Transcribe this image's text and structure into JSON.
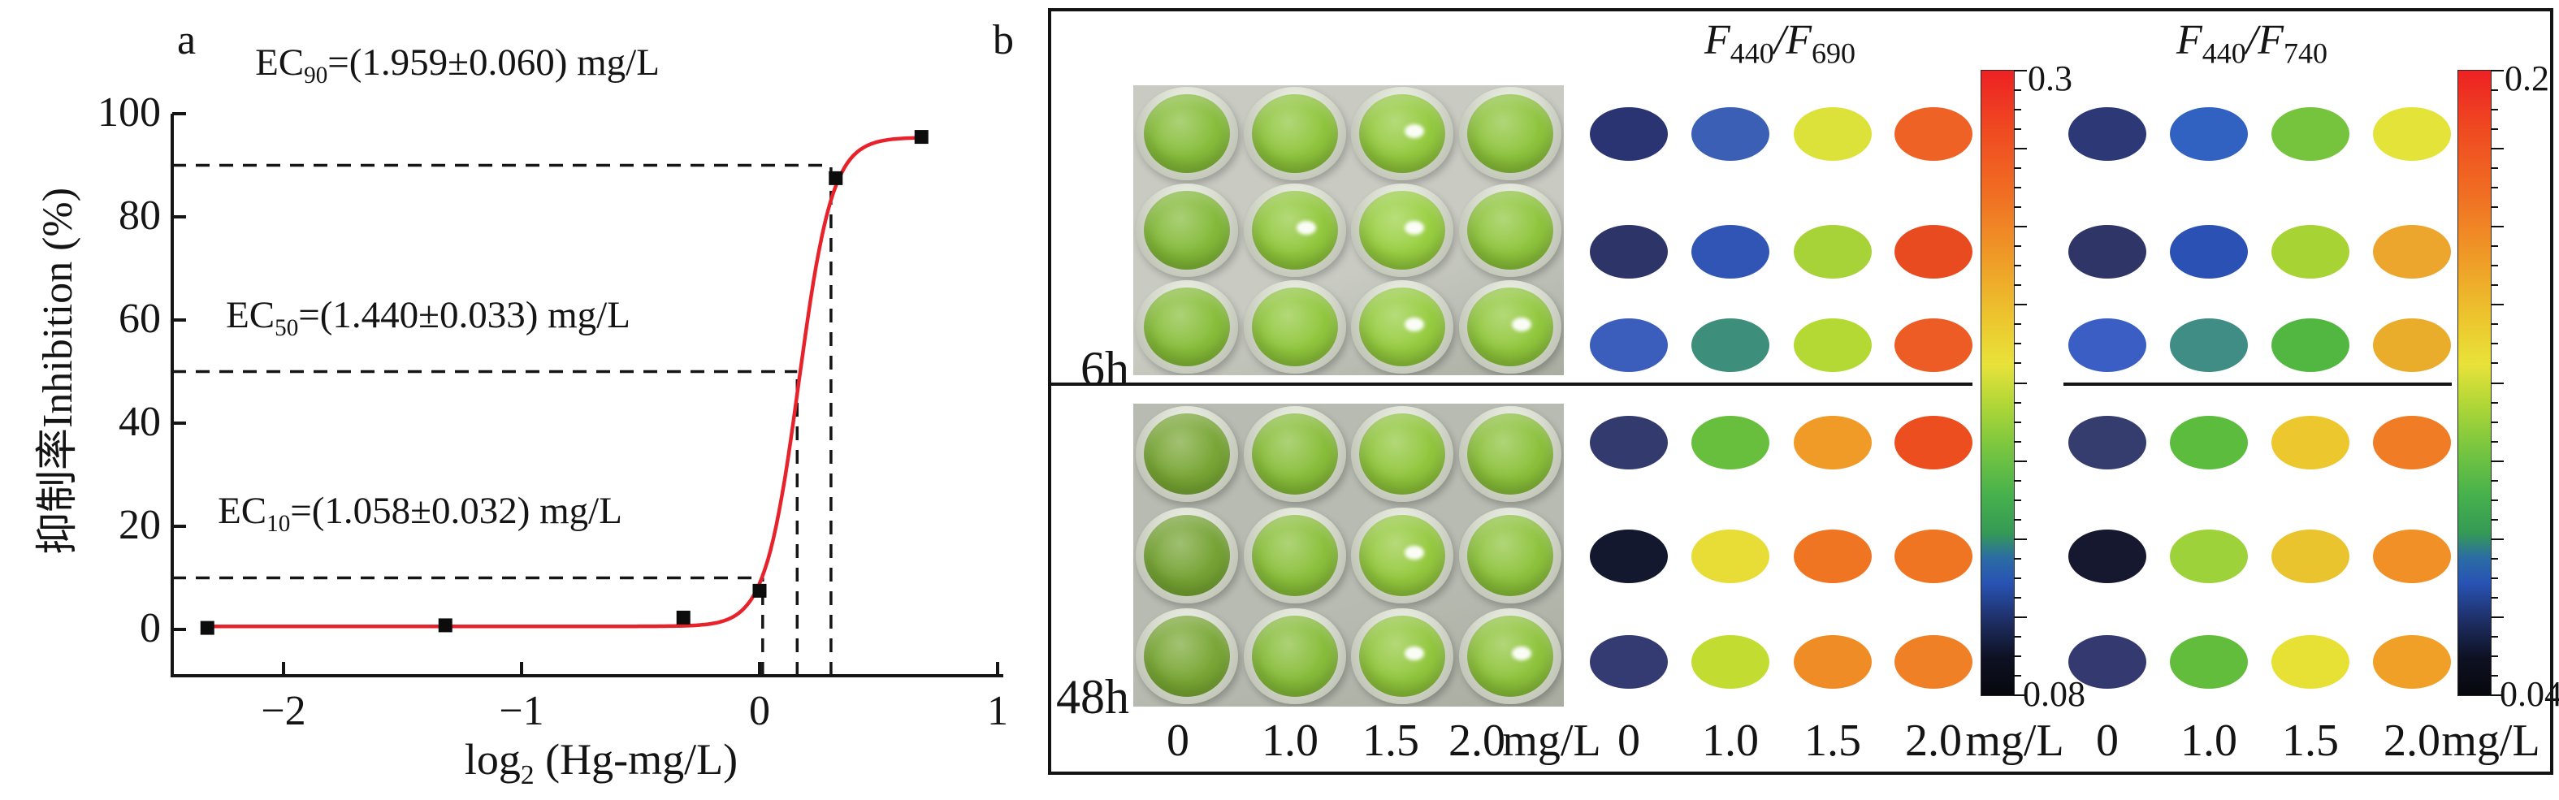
{
  "panel_a": {
    "label": "a",
    "y_axis": {
      "title": "抑制率Inhibition (%)",
      "tick_labels": [
        "0",
        "20",
        "40",
        "60",
        "80",
        "100"
      ]
    },
    "x_axis": {
      "title_prefix": "log",
      "title_sub": "2",
      "title_rest": " (Hg-mg/L)",
      "tick_labels": [
        "−2",
        "−1",
        "0",
        "1"
      ]
    },
    "annotations": [
      {
        "prefix": "EC",
        "sub": "90",
        "rest": "=(1.959±0.060) mg/L"
      },
      {
        "prefix": "EC",
        "sub": "50",
        "rest": "=(1.440±0.033) mg/L"
      },
      {
        "prefix": "EC",
        "sub": "10",
        "rest": "=(1.058±0.032) mg/L"
      }
    ]
  },
  "panel_b": {
    "label": "b",
    "plates": [
      {
        "time_label": "6h",
        "bg": "#c9cbc3",
        "well_colors": [
          [
            "#88be3c",
            "#90c63e",
            "#95cb40",
            "#8fc53e"
          ],
          [
            "#85bb3b",
            "#93c93f",
            "#9ad043",
            "#90c63e"
          ],
          [
            "#89bf3c",
            "#92c83f",
            "#97cd41",
            "#93c93f"
          ]
        ],
        "highlights": [
          [
            0,
            2
          ],
          [
            1,
            1
          ],
          [
            1,
            2
          ],
          [
            2,
            2
          ],
          [
            2,
            3
          ]
        ]
      },
      {
        "time_label": "48h",
        "bg": "#b7bbb1",
        "well_colors": [
          [
            "#7aa737",
            "#8abf3c",
            "#92c73e",
            "#8dc23d"
          ],
          [
            "#77a436",
            "#8cc13d",
            "#96ca40",
            "#8fc43e"
          ],
          [
            "#7ba837",
            "#89be3c",
            "#93c83f",
            "#90c53e"
          ]
        ],
        "highlights": [
          [
            1,
            2
          ],
          [
            2,
            2
          ],
          [
            2,
            3
          ]
        ]
      }
    ],
    "groups": [
      {
        "title_parts": [
          "F",
          "440",
          "/F",
          "690"
        ],
        "colorbar": {
          "max": "0.3",
          "min": "0.08"
        }
      },
      {
        "title_parts": [
          "F",
          "440",
          "/F",
          "740"
        ],
        "colorbar": {
          "max": "0.2",
          "min": "0.04"
        }
      }
    ],
    "conc_labels": [
      "0",
      "1.0",
      "1.5",
      "2.0"
    ],
    "unit_label": "mg/L",
    "colormap": [
      "#ee2123 0%",
      "#ef4c21 10%",
      "#f06f23 20%",
      "#ef9b27 30%",
      "#ecc72e 40%",
      "#e9e23a 47%",
      "#b4d837 53%",
      "#7cc73f 60%",
      "#46b14c 68%",
      "#359a55 74%",
      "#2b6ca4 78%",
      "#2853b4 82%",
      "#1e2f66 88%",
      "#0e1122 94%",
      "#07080e 100%"
    ]
  },
  "chart_data": [
    {
      "type": "scatter",
      "title": "Hg dose-response inhibition curve",
      "xlabel": "log2 (Hg-mg/L)",
      "ylabel": "抑制率Inhibition (%)",
      "xlim": [
        -2.47,
        1.02
      ],
      "ylim": [
        -9,
        100
      ],
      "x_ticks": [
        -2,
        -1,
        0,
        1
      ],
      "y_ticks": [
        0,
        20,
        40,
        60,
        80,
        100
      ],
      "grid": false,
      "points": [
        {
          "x": -2.32,
          "y": 0.3
        },
        {
          "x": -1.32,
          "y": 0.8
        },
        {
          "x": -0.32,
          "y": 2.3
        },
        {
          "x": 0.0,
          "y": 7.5
        },
        {
          "x": 0.32,
          "y": 87.5
        },
        {
          "x": 0.68,
          "y": 95.5
        }
      ],
      "fit": {
        "type": "logistic",
        "bottom": 0.6,
        "top": 95.4,
        "x_mid": 0.165,
        "slope": 14.2,
        "x_start": -2.33,
        "x_end": 0.687,
        "color": "#e8222b"
      },
      "guides": [
        {
          "level": 10,
          "x": 0.013
        },
        {
          "level": 50,
          "x": 0.158
        },
        {
          "level": 90,
          "x": 0.3
        }
      ],
      "annotations_text": [
        "EC90=(1.959±0.060) mg/L",
        "EC50=(1.440±0.033) mg/L",
        "EC10=(1.058±0.032) mg/L"
      ]
    },
    {
      "type": "heatmap",
      "title": "F440/F690",
      "x_categories": [
        "0",
        "1.0",
        "1.5",
        "2.0"
      ],
      "x_unit": "mg/L",
      "time_blocks": [
        "6h",
        "48h"
      ],
      "colorbar": {
        "max": "0.3",
        "min": "0.08"
      },
      "cell_colors": {
        "6h": [
          [
            "#2a3473",
            "#3a5fb5",
            "#dde23b",
            "#ee6325"
          ],
          [
            "#2d3468",
            "#3055b5",
            "#a8d338",
            "#e84b20"
          ],
          [
            "#3b5dbb",
            "#3d8f7b",
            "#b5d934",
            "#ed5c24"
          ]
        ],
        "48h": [
          [
            "#333a6e",
            "#67bf3d",
            "#f09a27",
            "#ec4e20"
          ],
          [
            "#14182e",
            "#e7dd36",
            "#ef7522",
            "#ef7522"
          ],
          [
            "#343a72",
            "#c2dc32",
            "#f08c26",
            "#f08026"
          ]
        ]
      }
    },
    {
      "type": "heatmap",
      "title": "F440/F740",
      "x_categories": [
        "0",
        "1.0",
        "1.5",
        "2.0"
      ],
      "x_unit": "mg/L",
      "time_blocks": [
        "6h",
        "48h"
      ],
      "colorbar": {
        "max": "0.2",
        "min": "0.04"
      },
      "cell_colors": {
        "6h": [
          [
            "#2c3976",
            "#3161c1",
            "#76c33e",
            "#e3e339"
          ],
          [
            "#2f3566",
            "#2b51b4",
            "#a8d335",
            "#eca62d"
          ],
          [
            "#3b5ec4",
            "#3f8d85",
            "#52b741",
            "#eaad2b"
          ]
        ],
        "48h": [
          [
            "#353c6e",
            "#5cbc3e",
            "#ecc72d",
            "#f07d25"
          ],
          [
            "#15182f",
            "#9ed23a",
            "#eac42e",
            "#f09026"
          ],
          [
            "#343a70",
            "#62bd3c",
            "#e7e135",
            "#f0a027"
          ]
        ]
      }
    }
  ]
}
